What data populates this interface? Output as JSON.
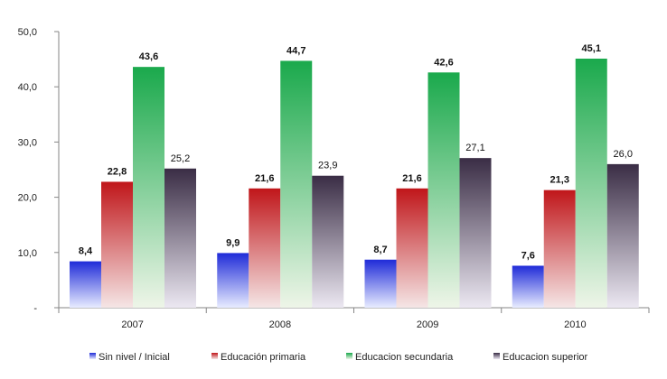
{
  "chart_data": {
    "type": "bar",
    "categories": [
      "2007",
      "2008",
      "2009",
      "2010"
    ],
    "series": [
      {
        "name": "Sin nivel / Inicial",
        "values": [
          8.4,
          9.9,
          8.7,
          7.6
        ],
        "labels": [
          "8,4",
          "9,9",
          "8,7",
          "7,6"
        ],
        "color": "#1f2bd8"
      },
      {
        "name": "Educación primaria",
        "values": [
          22.8,
          21.6,
          21.6,
          21.3
        ],
        "labels": [
          "22,8",
          "21,6",
          "21,6",
          "21,3"
        ],
        "color": "#c0161a"
      },
      {
        "name": "Educacion secundaria",
        "values": [
          43.6,
          44.7,
          42.6,
          45.1
        ],
        "labels": [
          "43,6",
          "44,7",
          "42,6",
          "45,1"
        ],
        "color": "#1aa94c"
      },
      {
        "name": "Educacion superior",
        "values": [
          25.2,
          23.9,
          27.1,
          26.0
        ],
        "labels": [
          "25,2",
          "23,9",
          "27,1",
          "26,0"
        ],
        "color": "#3a2d45"
      }
    ],
    "ylim": [
      0,
      50
    ],
    "yticks": [
      0,
      10,
      20,
      30,
      40,
      50
    ],
    "ytick_labels": [
      "-",
      "10,0",
      "20,0",
      "30,0",
      "40,0",
      "50,0"
    ],
    "grid": false,
    "legend_position": "bottom",
    "title": "",
    "xlabel": "",
    "ylabel": ""
  }
}
